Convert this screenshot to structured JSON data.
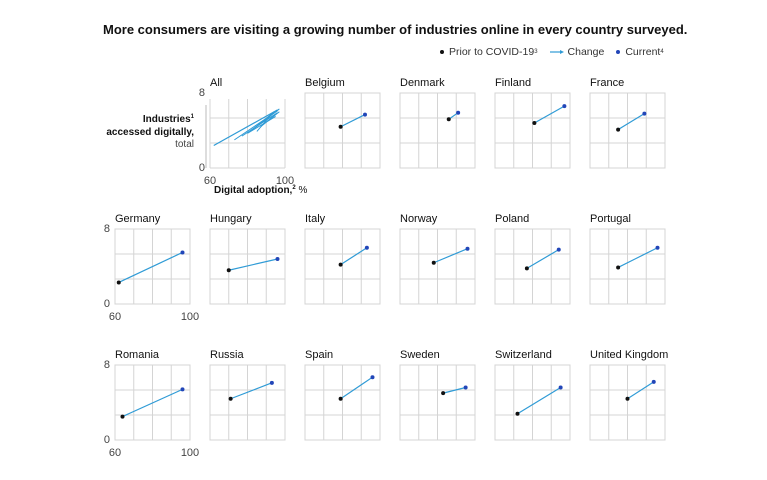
{
  "title": "More consumers are visiting a growing number of industries online in every country surveyed.",
  "legend": {
    "prior": {
      "label": "Prior to COVID-19",
      "note": "3",
      "color": "#111111"
    },
    "change": {
      "label": "Change",
      "color": "#2f9bd6"
    },
    "current": {
      "label": "Current",
      "note": "4",
      "color": "#2246b8"
    }
  },
  "y_axis": {
    "label_line1": "Industries",
    "label_note": "1",
    "label_line2": "accessed digitally,",
    "label_line3": "total",
    "min_label": "0",
    "max_label": "8"
  },
  "x_axis": {
    "label": "Digital adoption,",
    "label_note": "2",
    "label_unit": " %",
    "min_label": "60",
    "max_label": "100"
  },
  "chart_data": {
    "type": "scatter",
    "xlim": [
      60,
      100
    ],
    "ylim": [
      0,
      8
    ],
    "grid": true,
    "series": [
      {
        "name": "All",
        "x_prior": 62,
        "y_prior": 2.4,
        "x_current": 96,
        "y_current": 6.2,
        "extra_lines": [
          [
            [
              73,
              3.0
            ],
            [
              96,
              6.1
            ]
          ],
          [
            [
              77,
              3.4
            ],
            [
              96,
              5.9
            ]
          ],
          [
            [
              80,
              3.7
            ],
            [
              95,
              5.5
            ]
          ],
          [
            [
              82,
              4.0
            ],
            [
              97,
              6.3
            ]
          ],
          [
            [
              84,
              4.3
            ],
            [
              93,
              5.8
            ]
          ],
          [
            [
              85,
              3.9
            ],
            [
              94,
              6.0
            ]
          ],
          [
            [
              87,
              4.4
            ],
            [
              95,
              5.7
            ]
          ],
          [
            [
              88,
              4.6
            ],
            [
              97,
              6.0
            ]
          ]
        ]
      },
      {
        "name": "Belgium",
        "x_prior": 79,
        "y_prior": 4.4,
        "x_current": 92,
        "y_current": 5.7
      },
      {
        "name": "Denmark",
        "x_prior": 86,
        "y_prior": 5.2,
        "x_current": 91,
        "y_current": 5.9
      },
      {
        "name": "Finland",
        "x_prior": 81,
        "y_prior": 4.8,
        "x_current": 97,
        "y_current": 6.6
      },
      {
        "name": "France",
        "x_prior": 75,
        "y_prior": 4.1,
        "x_current": 89,
        "y_current": 5.8
      },
      {
        "name": "Germany",
        "x_prior": 62,
        "y_prior": 2.3,
        "x_current": 96,
        "y_current": 5.5
      },
      {
        "name": "Hungary",
        "x_prior": 70,
        "y_prior": 3.6,
        "x_current": 96,
        "y_current": 4.8
      },
      {
        "name": "Italy",
        "x_prior": 79,
        "y_prior": 4.2,
        "x_current": 93,
        "y_current": 6.0
      },
      {
        "name": "Norway",
        "x_prior": 78,
        "y_prior": 4.4,
        "x_current": 96,
        "y_current": 5.9
      },
      {
        "name": "Poland",
        "x_prior": 77,
        "y_prior": 3.8,
        "x_current": 94,
        "y_current": 5.8
      },
      {
        "name": "Portugal",
        "x_prior": 75,
        "y_prior": 3.9,
        "x_current": 96,
        "y_current": 6.0
      },
      {
        "name": "Romania",
        "x_prior": 64,
        "y_prior": 2.5,
        "x_current": 96,
        "y_current": 5.4
      },
      {
        "name": "Russia",
        "x_prior": 71,
        "y_prior": 4.4,
        "x_current": 93,
        "y_current": 6.1
      },
      {
        "name": "Spain",
        "x_prior": 79,
        "y_prior": 4.4,
        "x_current": 96,
        "y_current": 6.7
      },
      {
        "name": "Sweden",
        "x_prior": 83,
        "y_prior": 5.0,
        "x_current": 95,
        "y_current": 5.6
      },
      {
        "name": "Switzerland",
        "x_prior": 72,
        "y_prior": 2.8,
        "x_current": 95,
        "y_current": 5.6
      },
      {
        "name": "United Kingdom",
        "x_prior": 80,
        "y_prior": 4.4,
        "x_current": 94,
        "y_current": 6.2
      }
    ]
  }
}
